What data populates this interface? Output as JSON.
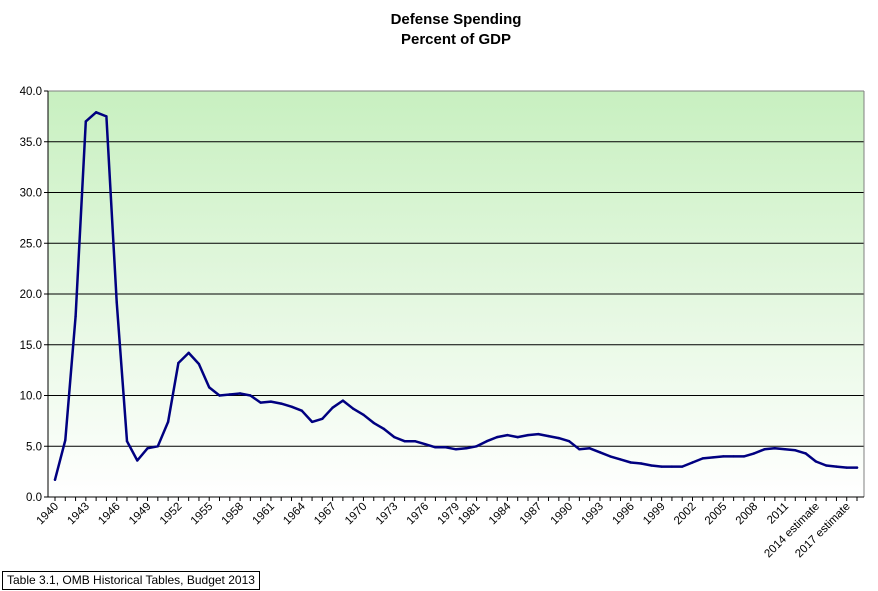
{
  "chart_data": {
    "type": "line",
    "title": "Defense Spending",
    "subtitle": "Percent of GDP",
    "xlabel": "",
    "ylabel": "",
    "ylim": [
      0,
      40
    ],
    "yticks": [
      "0.0",
      "5.0",
      "10.0",
      "15.0",
      "20.0",
      "25.0",
      "30.0",
      "35.0",
      "40.0"
    ],
    "grid": true,
    "legend": "none",
    "categories": [
      "1940",
      "1941",
      "1942",
      "1943",
      "1944",
      "1945",
      "1946",
      "1947",
      "1948",
      "1949",
      "1950",
      "1951",
      "1952",
      "1953",
      "1954",
      "1955",
      "1956",
      "1957",
      "1958",
      "1959",
      "1960",
      "1961",
      "1962",
      "1963",
      "1964",
      "1965",
      "1966",
      "1967",
      "1968",
      "1969",
      "1970",
      "1971",
      "1972",
      "1973",
      "1974",
      "1975",
      "1976",
      "1977",
      "1978",
      "1979",
      "1980",
      "1981",
      "1982",
      "1983",
      "1984",
      "1985",
      "1986",
      "1987",
      "1988",
      "1989",
      "1990",
      "1991",
      "1992",
      "1993",
      "1994",
      "1995",
      "1996",
      "1997",
      "1998",
      "1999",
      "2000",
      "2001",
      "2002",
      "2003",
      "2004",
      "2005",
      "2006",
      "2007",
      "2008",
      "2009",
      "2010",
      "2011",
      "2012",
      "2013",
      "2014 estimate",
      "2015",
      "2016",
      "2017 estimate",
      "2018"
    ],
    "xtick_labels": [
      "1940",
      "1943",
      "1946",
      "1949",
      "1952",
      "1955",
      "1958",
      "1961",
      "1964",
      "1967",
      "1970",
      "1973",
      "1976",
      "1979",
      "1981",
      "1984",
      "1987",
      "1990",
      "1993",
      "1996",
      "1999",
      "2002",
      "2005",
      "2008",
      "2011",
      "2014 estimate",
      "2017 estimate"
    ],
    "series": [
      {
        "name": "Defense Spending (% of GDP)",
        "color": "#000080",
        "values": [
          1.7,
          5.6,
          17.8,
          37.0,
          37.9,
          37.5,
          19.2,
          5.5,
          3.6,
          4.8,
          5.0,
          7.4,
          13.2,
          14.2,
          13.1,
          10.8,
          10.0,
          10.1,
          10.2,
          10.0,
          9.3,
          9.4,
          9.2,
          8.9,
          8.5,
          7.4,
          7.7,
          8.8,
          9.5,
          8.7,
          8.1,
          7.3,
          6.7,
          5.9,
          5.5,
          5.5,
          5.2,
          4.9,
          4.9,
          4.7,
          4.8,
          5.0,
          5.5,
          5.9,
          6.1,
          5.9,
          6.1,
          6.2,
          6.0,
          5.8,
          5.5,
          4.7,
          4.8,
          4.4,
          4.0,
          3.7,
          3.4,
          3.3,
          3.1,
          3.0,
          3.0,
          3.0,
          3.4,
          3.8,
          3.9,
          4.0,
          4.0,
          4.0,
          4.3,
          4.7,
          4.8,
          4.7,
          4.6,
          4.3,
          3.5,
          3.1,
          3.0,
          2.9,
          2.9
        ]
      }
    ],
    "source_note": "Table 3.1, OMB Historical Tables, Budget 2013",
    "plot_background": [
      "#c8f0c0",
      "#ffffff"
    ],
    "grid_color": "#000000"
  }
}
